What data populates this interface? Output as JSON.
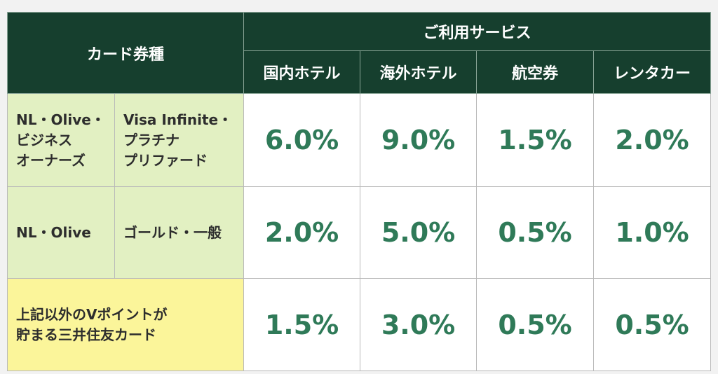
{
  "header": {
    "card_type": "カード券種",
    "services": "ご利用サービス",
    "columns": [
      "国内ホテル",
      "海外ホテル",
      "航空券",
      "レンタカー"
    ]
  },
  "rows": [
    {
      "brand": "NL・Olive・\nビジネス\nオーナーズ",
      "tier": "Visa Infinite・\nプラチナ\nプリファード",
      "values": [
        "6.0%",
        "9.0%",
        "1.5%",
        "2.0%"
      ]
    },
    {
      "brand": "NL・Olive",
      "tier": "ゴールド・一般",
      "values": [
        "2.0%",
        "5.0%",
        "0.5%",
        "1.0%"
      ]
    },
    {
      "label": "上記以外のVポイントが\n貯まる三井住友カード",
      "values": [
        "1.5%",
        "3.0%",
        "0.5%",
        "0.5%"
      ]
    }
  ],
  "colors": {
    "header_bg": "#163f2e",
    "label_bg_green": "#e2f0c2",
    "label_bg_yellow": "#fbf59a",
    "value_text": "#2f7a58"
  }
}
